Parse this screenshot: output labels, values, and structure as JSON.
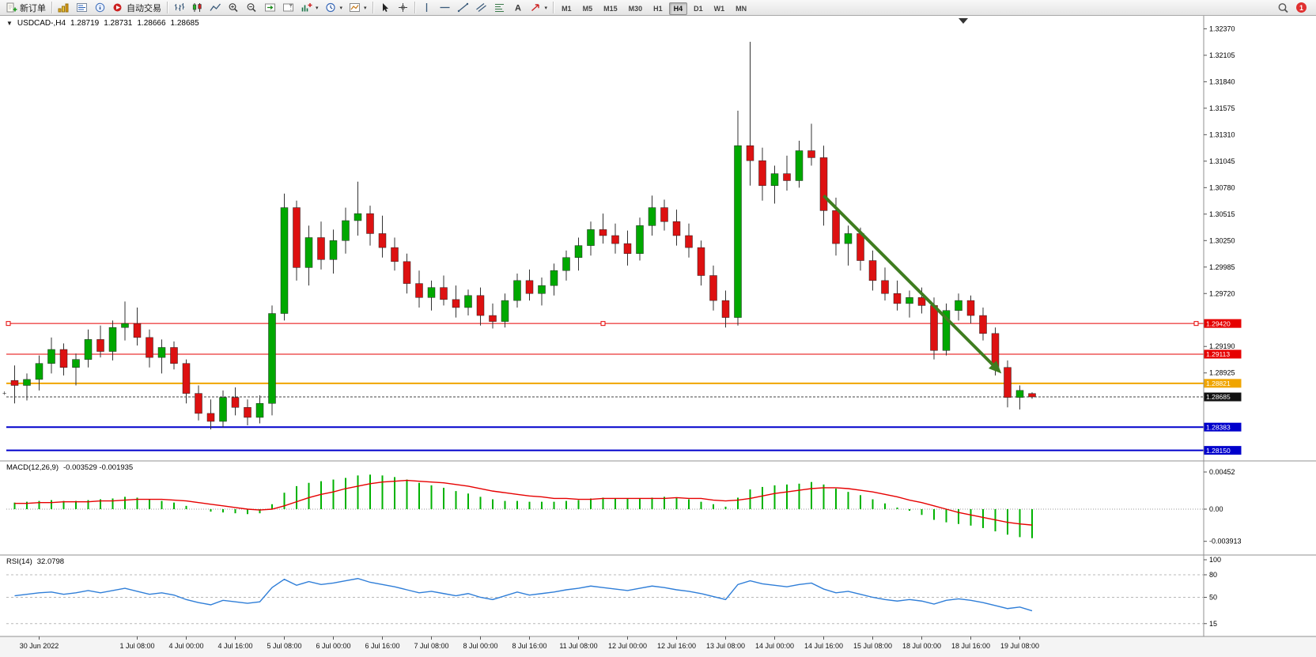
{
  "toolbar": {
    "new_order_label": "新订单",
    "autotrading_label": "自动交易",
    "timeframes": [
      "M1",
      "M5",
      "M15",
      "M30",
      "H1",
      "H4",
      "D1",
      "W1",
      "MN"
    ],
    "active_timeframe": "H4",
    "notification_count": "1",
    "icon_names": [
      "new-order-icon",
      "profiles-icon",
      "market-watch-icon",
      "data-window-icon",
      "autotrading-icon",
      "bars-icon",
      "candlesticks-icon",
      "line-chart-icon",
      "zoom-in-icon",
      "zoom-out-icon",
      "auto-scroll-icon",
      "chart-shift-icon",
      "indicators-icon",
      "periods-icon",
      "templates-icon",
      "cursor-icon",
      "crosshair-icon",
      "vertical-line-icon",
      "horizontal-line-icon",
      "trendline-icon",
      "channel-icon",
      "fibonacci-icon",
      "text-icon",
      "arrows-icon",
      "search-icon"
    ]
  },
  "chart_header": {
    "symbol_period": "USDCAD-,H4",
    "open": "1.28719",
    "high": "1.28731",
    "low": "1.28666",
    "close": "1.28685"
  },
  "chart_data": {
    "type": "candlestick",
    "symbol": "USDCAD-",
    "timeframe": "H4",
    "price_ticks": [
      "1.32370",
      "1.32105",
      "1.31840",
      "1.31575",
      "1.31310",
      "1.31045",
      "1.30780",
      "1.30515",
      "1.30250",
      "1.29985",
      "1.29720",
      "1.29190",
      "1.28925"
    ],
    "axis_price_labels": [
      {
        "text": "1.29420",
        "price": 1.2942,
        "bg": "#e60000"
      },
      {
        "text": "1.29113",
        "price": 1.29113,
        "bg": "#e60000"
      },
      {
        "text": "1.28821",
        "price": 1.28821,
        "bg": "#f0a500"
      },
      {
        "text": "1.28685",
        "price": 1.28685,
        "bg": "#111111"
      },
      {
        "text": "1.28383",
        "price": 1.28383,
        "bg": "#0000cc"
      },
      {
        "text": "1.28150",
        "price": 1.2815,
        "bg": "#0000cc"
      }
    ],
    "levels": [
      {
        "price": 1.2942,
        "color": "#e60000",
        "width": 1,
        "selected": true
      },
      {
        "price": 1.29113,
        "color": "#e60000",
        "width": 1
      },
      {
        "price": 1.28821,
        "color": "#f0a500",
        "width": 2
      },
      {
        "price": 1.28383,
        "color": "#0000cc",
        "width": 2
      },
      {
        "price": 1.2815,
        "color": "#0000cc",
        "width": 2
      }
    ],
    "bid": {
      "label": "1.28685",
      "price": 1.28685
    },
    "time_labels": [
      [
        "30 Jun 2022",
        2
      ],
      [
        "1 Jul 08:00",
        10
      ],
      [
        "4 Jul 00:00",
        14
      ],
      [
        "4 Jul 16:00",
        18
      ],
      [
        "5 Jul 08:00",
        22
      ],
      [
        "6 Jul 00:00",
        26
      ],
      [
        "6 Jul 16:00",
        30
      ],
      [
        "7 Jul 08:00",
        34
      ],
      [
        "8 Jul 00:00",
        38
      ],
      [
        "8 Jul 16:00",
        42
      ],
      [
        "11 Jul 08:00",
        46
      ],
      [
        "12 Jul 00:00",
        50
      ],
      [
        "12 Jul 16:00",
        54
      ],
      [
        "13 Jul 08:00",
        58
      ],
      [
        "14 Jul 00:00",
        62
      ],
      [
        "14 Jul 16:00",
        66
      ],
      [
        "15 Jul 08:00",
        70
      ],
      [
        "18 Jul 00:00",
        74
      ],
      [
        "18 Jul 16:00",
        78
      ],
      [
        "19 Jul 08:00",
        82
      ]
    ],
    "candles": [
      [
        1.2885,
        1.29,
        1.2862,
        1.288
      ],
      [
        1.288,
        1.2892,
        1.2865,
        1.2886
      ],
      [
        1.2886,
        1.291,
        1.2875,
        1.2902
      ],
      [
        1.2902,
        1.2928,
        1.2892,
        1.2916
      ],
      [
        1.2916,
        1.2922,
        1.289,
        1.2898
      ],
      [
        1.2898,
        1.2912,
        1.288,
        1.2906
      ],
      [
        1.2906,
        1.2936,
        1.2898,
        1.2926
      ],
      [
        1.2926,
        1.294,
        1.2908,
        1.2914
      ],
      [
        1.2914,
        1.2945,
        1.2905,
        1.2938
      ],
      [
        1.2938,
        1.2964,
        1.2925,
        1.2942
      ],
      [
        1.2942,
        1.2958,
        1.292,
        1.2928
      ],
      [
        1.2928,
        1.2936,
        1.2898,
        1.2908
      ],
      [
        1.2908,
        1.2926,
        1.2892,
        1.2918
      ],
      [
        1.2918,
        1.2924,
        1.2896,
        1.2902
      ],
      [
        1.2902,
        1.2906,
        1.2862,
        1.2872
      ],
      [
        1.2872,
        1.288,
        1.2845,
        1.2852
      ],
      [
        1.2852,
        1.2866,
        1.2836,
        1.2844
      ],
      [
        1.2844,
        1.2875,
        1.2838,
        1.2868
      ],
      [
        1.2868,
        1.2878,
        1.285,
        1.2858
      ],
      [
        1.2858,
        1.2866,
        1.284,
        1.2848
      ],
      [
        1.2848,
        1.287,
        1.2842,
        1.2862
      ],
      [
        1.2862,
        1.296,
        1.285,
        1.2952
      ],
      [
        1.2952,
        1.3072,
        1.2945,
        1.3058
      ],
      [
        1.3058,
        1.3065,
        1.2985,
        1.2998
      ],
      [
        1.2998,
        1.304,
        1.298,
        1.3028
      ],
      [
        1.3028,
        1.3044,
        1.2996,
        1.3006
      ],
      [
        1.3006,
        1.3036,
        1.2992,
        1.3025
      ],
      [
        1.3025,
        1.3058,
        1.3012,
        1.3045
      ],
      [
        1.3045,
        1.3084,
        1.303,
        1.3052
      ],
      [
        1.3052,
        1.306,
        1.302,
        1.3032
      ],
      [
        1.3032,
        1.305,
        1.3008,
        1.3018
      ],
      [
        1.3018,
        1.3028,
        1.2995,
        1.3004
      ],
      [
        1.3004,
        1.3012,
        1.2972,
        1.2982
      ],
      [
        1.2982,
        1.2995,
        1.2958,
        1.2968
      ],
      [
        1.2968,
        1.2985,
        1.2955,
        1.2978
      ],
      [
        1.2978,
        1.299,
        1.296,
        1.2966
      ],
      [
        1.2966,
        1.298,
        1.2948,
        1.2958
      ],
      [
        1.2958,
        1.2976,
        1.295,
        1.297
      ],
      [
        1.297,
        1.2978,
        1.294,
        1.295
      ],
      [
        1.295,
        1.2962,
        1.2937,
        1.2944
      ],
      [
        1.2944,
        1.2972,
        1.2938,
        1.2965
      ],
      [
        1.2965,
        1.2992,
        1.2958,
        1.2985
      ],
      [
        1.2985,
        1.2996,
        1.2965,
        1.2972
      ],
      [
        1.2972,
        1.2988,
        1.296,
        1.298
      ],
      [
        1.298,
        1.3002,
        1.297,
        1.2995
      ],
      [
        1.2995,
        1.3015,
        1.2985,
        1.3008
      ],
      [
        1.3008,
        1.3028,
        1.2995,
        1.302
      ],
      [
        1.302,
        1.3044,
        1.301,
        1.3036
      ],
      [
        1.3036,
        1.3052,
        1.3022,
        1.303
      ],
      [
        1.303,
        1.3042,
        1.3012,
        1.3022
      ],
      [
        1.3022,
        1.3035,
        1.3,
        1.3012
      ],
      [
        1.3012,
        1.3048,
        1.3005,
        1.304
      ],
      [
        1.304,
        1.307,
        1.303,
        1.3058
      ],
      [
        1.3058,
        1.3066,
        1.3035,
        1.3044
      ],
      [
        1.3044,
        1.3056,
        1.302,
        1.303
      ],
      [
        1.303,
        1.3042,
        1.3008,
        1.3018
      ],
      [
        1.3018,
        1.3025,
        1.298,
        1.299
      ],
      [
        1.299,
        1.3,
        1.2955,
        1.2965
      ],
      [
        1.2965,
        1.2975,
        1.2938,
        1.2948
      ],
      [
        1.2948,
        1.3155,
        1.294,
        1.312
      ],
      [
        1.312,
        1.3224,
        1.308,
        1.3105
      ],
      [
        1.3105,
        1.3118,
        1.3065,
        1.308
      ],
      [
        1.308,
        1.31,
        1.3062,
        1.3092
      ],
      [
        1.3092,
        1.311,
        1.3075,
        1.3085
      ],
      [
        1.3085,
        1.3125,
        1.3078,
        1.3115
      ],
      [
        1.3115,
        1.3142,
        1.31,
        1.3108
      ],
      [
        1.3108,
        1.312,
        1.304,
        1.3055
      ],
      [
        1.3055,
        1.3068,
        1.301,
        1.3022
      ],
      [
        1.3022,
        1.304,
        1.3,
        1.3032
      ],
      [
        1.3032,
        1.3038,
        1.2995,
        1.3005
      ],
      [
        1.3005,
        1.3015,
        1.2975,
        1.2985
      ],
      [
        1.2985,
        1.2998,
        1.2965,
        1.2972
      ],
      [
        1.2972,
        1.2985,
        1.2955,
        1.2962
      ],
      [
        1.2962,
        1.2975,
        1.2948,
        1.2968
      ],
      [
        1.2968,
        1.2978,
        1.2952,
        1.296
      ],
      [
        1.296,
        1.2968,
        1.2906,
        1.2915
      ],
      [
        1.2915,
        1.2962,
        1.291,
        1.2955
      ],
      [
        1.2955,
        1.2972,
        1.2945,
        1.2965
      ],
      [
        1.2965,
        1.297,
        1.2942,
        1.295
      ],
      [
        1.295,
        1.2958,
        1.2925,
        1.2932
      ],
      [
        1.2932,
        1.2938,
        1.289,
        1.2898
      ],
      [
        1.2898,
        1.2905,
        1.2858,
        1.2868
      ],
      [
        1.2868,
        1.288,
        1.2856,
        1.2875
      ],
      [
        1.28719,
        1.28731,
        1.28666,
        1.28685
      ]
    ],
    "trend_arrow": {
      "from_index": 66,
      "from_price": 1.307,
      "to_index": 80.5,
      "to_price": 1.2892
    },
    "macd": {
      "label": "MACD(12,26,9)",
      "values_text": "-0.003529 -0.001935",
      "axis_labels": [
        "0.00452",
        "0.00",
        "-0.003913"
      ],
      "values": [
        0.0008,
        0.0009,
        0.001,
        0.0011,
        0.001,
        0.001,
        0.0011,
        0.0012,
        0.0013,
        0.0015,
        0.0014,
        0.0012,
        0.001,
        0.0008,
        0.0004,
        0,
        -0.0003,
        -0.0004,
        -0.0005,
        -0.0006,
        -0.0005,
        0.0006,
        0.002,
        0.0028,
        0.0032,
        0.0034,
        0.0036,
        0.0038,
        0.0041,
        0.0042,
        0.0041,
        0.0039,
        0.0036,
        0.0032,
        0.0029,
        0.0026,
        0.0022,
        0.0019,
        0.0015,
        0.0012,
        0.001,
        0.001,
        0.0009,
        0.0009,
        0.0009,
        0.001,
        0.0011,
        0.0013,
        0.0014,
        0.0013,
        0.0013,
        0.0013,
        0.0014,
        0.0015,
        0.0014,
        0.0012,
        0.0009,
        0.0006,
        0.0003,
        0.0014,
        0.0024,
        0.0027,
        0.0029,
        0.003,
        0.0031,
        0.0033,
        0.003,
        0.0025,
        0.0021,
        0.0017,
        0.0012,
        0.0007,
        0.0002,
        -0.0002,
        -0.0007,
        -0.0013,
        -0.0016,
        -0.0018,
        -0.002,
        -0.0023,
        -0.0027,
        -0.0031,
        -0.0034,
        -0.003529
      ],
      "signal": [
        0.0007,
        0.0007,
        0.0008,
        0.0008,
        0.0009,
        0.0009,
        0.0009,
        0.001,
        0.001,
        0.0011,
        0.0012,
        0.0012,
        0.0012,
        0.0011,
        0.001,
        0.0008,
        0.0006,
        0.0004,
        0.0002,
        0,
        -0.0001,
        0,
        0.0004,
        0.0009,
        0.0014,
        0.0018,
        0.0021,
        0.0025,
        0.0028,
        0.0031,
        0.0033,
        0.0034,
        0.0035,
        0.0034,
        0.0033,
        0.0032,
        0.003,
        0.0028,
        0.0025,
        0.0022,
        0.002,
        0.0018,
        0.0016,
        0.0015,
        0.0013,
        0.0013,
        0.0012,
        0.0012,
        0.0013,
        0.0013,
        0.0013,
        0.0013,
        0.0013,
        0.0013,
        0.0014,
        0.0013,
        0.0013,
        0.0011,
        0.001,
        0.0011,
        0.0013,
        0.0016,
        0.0019,
        0.0021,
        0.0023,
        0.0025,
        0.0026,
        0.0026,
        0.0025,
        0.0023,
        0.0021,
        0.0018,
        0.0015,
        0.0011,
        0.0008,
        0.0004,
        0,
        -0.0004,
        -0.0007,
        -0.001,
        -0.0013,
        -0.0016,
        -0.0018,
        -0.001935
      ]
    },
    "rsi": {
      "label": "RSI(14)",
      "value_text": "32.0798",
      "axis_labels": [
        "100",
        "80",
        "50",
        "15"
      ],
      "levels": [
        80,
        50,
        15
      ],
      "values": [
        52,
        54,
        56,
        57,
        54,
        56,
        59,
        56,
        59,
        62,
        58,
        54,
        56,
        53,
        47,
        43,
        40,
        46,
        44,
        42,
        44,
        63,
        74,
        66,
        71,
        67,
        69,
        72,
        75,
        70,
        67,
        64,
        60,
        56,
        58,
        55,
        52,
        55,
        50,
        47,
        52,
        57,
        53,
        55,
        57,
        60,
        62,
        65,
        63,
        61,
        59,
        62,
        65,
        63,
        60,
        58,
        55,
        51,
        47,
        67,
        72,
        68,
        66,
        64,
        67,
        69,
        61,
        56,
        58,
        54,
        50,
        47,
        45,
        47,
        45,
        41,
        46,
        48,
        46,
        43,
        39,
        35,
        37,
        32.0798
      ]
    },
    "colors": {
      "up": "#00a800",
      "down": "#dd1111",
      "macd_hist": "#00b200",
      "macd_signal": "#e60000",
      "rsi": "#2f7ed8",
      "arrow": "#3f7d20"
    }
  }
}
